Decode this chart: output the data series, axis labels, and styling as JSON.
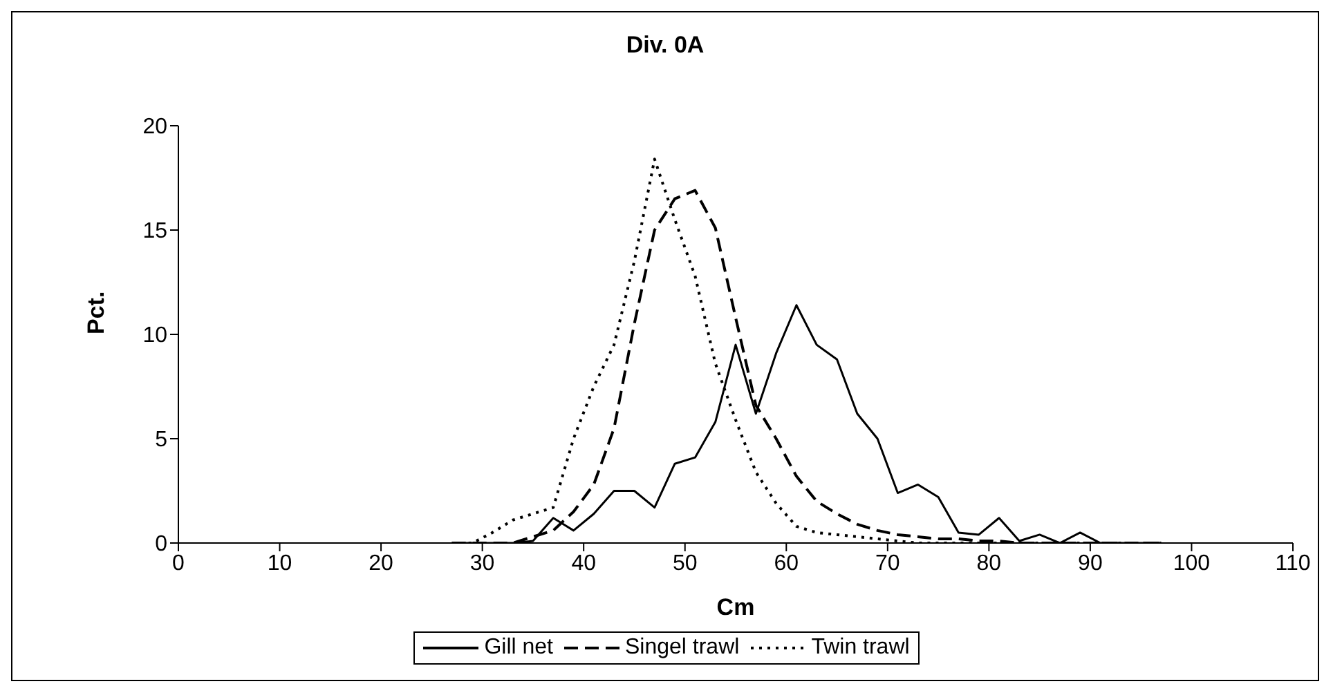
{
  "chart_data": {
    "type": "line",
    "title": "Div. 0A",
    "xlabel": "Cm",
    "ylabel": "Pct.",
    "x": [
      27,
      29,
      31,
      33,
      35,
      37,
      39,
      41,
      43,
      45,
      47,
      49,
      51,
      53,
      55,
      57,
      59,
      61,
      63,
      65,
      67,
      69,
      71,
      73,
      75,
      77,
      79,
      81,
      83,
      85,
      87,
      89,
      91,
      93,
      95,
      97
    ],
    "series": [
      {
        "name": "Gill net",
        "color": "#000000",
        "line_style": "solid",
        "values": [
          0,
          0,
          0,
          0,
          0.1,
          1.2,
          0.6,
          1.4,
          2.5,
          2.5,
          1.7,
          3.8,
          4.1,
          5.8,
          9.5,
          6.2,
          9.1,
          11.4,
          9.5,
          8.8,
          6.2,
          5.0,
          2.4,
          2.8,
          2.2,
          0.5,
          0.4,
          1.2,
          0.1,
          0.4,
          0,
          0.5,
          0,
          0,
          0,
          0
        ]
      },
      {
        "name": "Singel trawl",
        "color": "#000000",
        "line_style": "dashed",
        "values": [
          0,
          0,
          0,
          0,
          0.3,
          0.6,
          1.5,
          2.8,
          5.5,
          10.5,
          15,
          16.5,
          16.9,
          15.1,
          10.8,
          6.6,
          5.0,
          3.2,
          2.0,
          1.4,
          0.9,
          0.6,
          0.4,
          0.3,
          0.2,
          0.2,
          0.1,
          0.1,
          0,
          0,
          0,
          0,
          0,
          0,
          0,
          0
        ]
      },
      {
        "name": "Twin trawl",
        "color": "#000000",
        "line_style": "dotted",
        "values": [
          0,
          0,
          0.5,
          1.1,
          1.4,
          1.7,
          5,
          7.5,
          9.5,
          13.5,
          18.4,
          15.5,
          12.8,
          8.6,
          5.9,
          3.4,
          1.9,
          0.8,
          0.5,
          0.4,
          0.3,
          0.2,
          0.1,
          0,
          0,
          0,
          0,
          0,
          0,
          0,
          0,
          0,
          0,
          0,
          0,
          0
        ]
      }
    ],
    "xlim": [
      0,
      110
    ],
    "xticks": [
      0,
      10,
      20,
      30,
      40,
      50,
      60,
      70,
      80,
      90,
      100,
      110
    ],
    "ylim": [
      0,
      20
    ],
    "yticks": [
      0,
      5,
      10,
      15,
      20
    ],
    "grid": false,
    "legend": "bottom",
    "marker": "none"
  }
}
